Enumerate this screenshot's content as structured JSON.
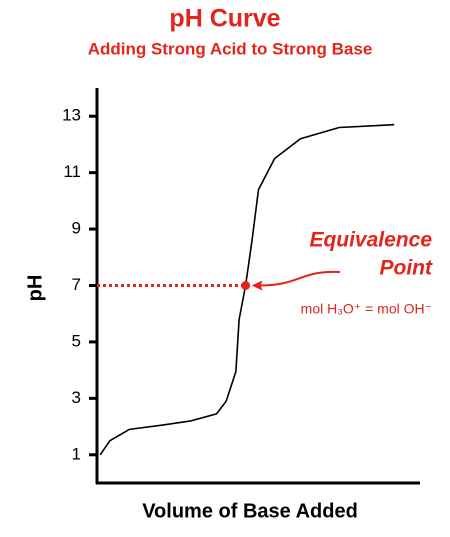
{
  "chart_data": {
    "type": "line",
    "title": "pH Curve",
    "subtitle": "Adding Strong Acid to Strong Base",
    "x_label": "Volume of Base Added",
    "y_label": "pH",
    "xlim": [
      0,
      100
    ],
    "ylim": [
      0,
      14
    ],
    "yticks": [
      1,
      3,
      5,
      7,
      9,
      11,
      13
    ],
    "series": [
      {
        "color": "#000000",
        "x": [
          1,
          4,
          10,
          20,
          29,
          37,
          40,
          43,
          44,
          46,
          48,
          50,
          55,
          63,
          75,
          92
        ],
        "values": [
          1,
          1.5,
          1.9,
          2.05,
          2.2,
          2.45,
          2.9,
          3.95,
          5.8,
          7,
          8.6,
          10.4,
          11.5,
          12.2,
          12.6,
          12.7
        ]
      }
    ],
    "annotations": [
      {
        "text": [
          "Equivalence",
          "Point"
        ],
        "note": "mol H₃O⁺ = mol OH⁻",
        "x": 46,
        "y": 7,
        "color": "#e3241b"
      }
    ],
    "title_color": "#e3241b"
  }
}
